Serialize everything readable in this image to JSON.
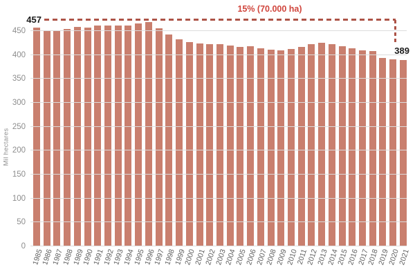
{
  "chart_data": {
    "type": "bar",
    "x": [
      "1985",
      "1986",
      "1987",
      "1988",
      "1989",
      "1990",
      "1991",
      "1992",
      "1993",
      "1994",
      "1995",
      "1996",
      "1997",
      "1998",
      "1999",
      "2000",
      "2001",
      "2002",
      "2003",
      "2004",
      "2005",
      "2006",
      "2007",
      "2008",
      "2009",
      "2010",
      "2011",
      "2012",
      "2013",
      "2014",
      "2015",
      "2016",
      "2017",
      "2018",
      "2019",
      "2020",
      "2021"
    ],
    "values": [
      457,
      451,
      451,
      454,
      458,
      457,
      461,
      462,
      462,
      461,
      466,
      469,
      456,
      443,
      433,
      427,
      424,
      423,
      422,
      420,
      417,
      418,
      414,
      411,
      409,
      412,
      417,
      422,
      426,
      423,
      419,
      414,
      409,
      408,
      394,
      391,
      389
    ],
    "title": "",
    "xlabel": "",
    "ylabel": "Mil hectares",
    "yticks": [
      0,
      50,
      100,
      150,
      200,
      250,
      300,
      350,
      400,
      450
    ],
    "ylim": [
      0,
      486
    ],
    "grid": true,
    "legend": "none",
    "colors": {
      "bar": "#c97f6e",
      "dash_line": "#ad5347",
      "annotation_text": "#d0453c",
      "gridline": "#dcdcdc"
    },
    "annotations": {
      "start_value_label": "457",
      "end_value_label": "389",
      "change_label": "15% (70.000 ha)"
    }
  }
}
